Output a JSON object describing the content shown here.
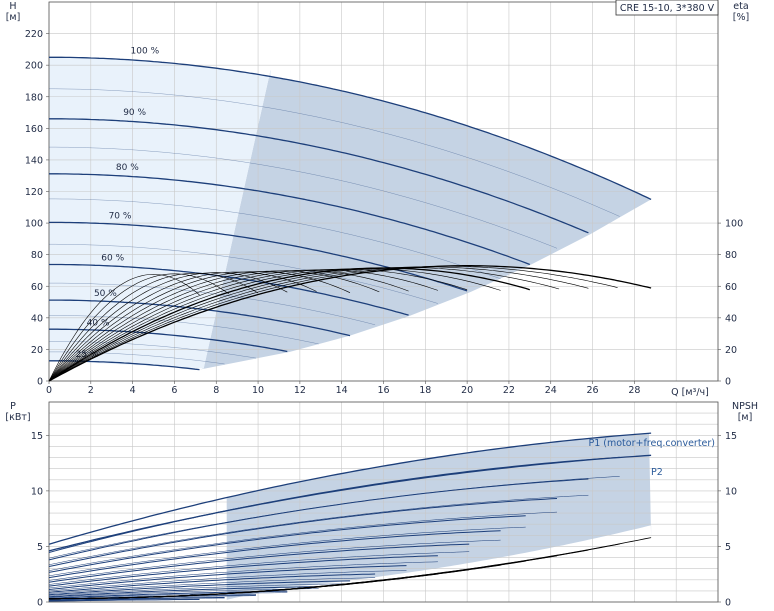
{
  "chart_data": [
    {
      "type": "line",
      "title": "CRE 15-10, 3*380 V",
      "xlabel": "Q [м³/ч]",
      "ylabel_left_name": "H",
      "ylabel_left_unit": "[м]",
      "ylabel_right_name": "eta",
      "ylabel_right_unit": "[%]",
      "xlim": [
        0,
        32
      ],
      "ylim_left": [
        0,
        240
      ],
      "ylim_right": [
        0,
        240
      ],
      "x_ticks": [
        "0",
        "2",
        "4",
        "6",
        "8",
        "10",
        "12",
        "14",
        "16",
        "18",
        "20",
        "22",
        "24",
        "26",
        "28"
      ],
      "y_ticks_left": [
        "0",
        "20",
        "40",
        "60",
        "80",
        "100",
        "120",
        "140",
        "160",
        "180",
        "200",
        "220"
      ],
      "y_ticks_right": [
        "0",
        "20",
        "40",
        "60",
        "80",
        "100"
      ],
      "grid": true,
      "speed_labels": [
        "100 %",
        "90 %",
        "80 %",
        "70 %",
        "60 %",
        "50 %",
        "40 %",
        "25 %"
      ],
      "speed_fractions": [
        1.0,
        0.9,
        0.8,
        0.7,
        0.6,
        0.5,
        0.4,
        0.25
      ],
      "head_curve_100": {
        "shutoff_head": 205,
        "qmax": 28.8,
        "h_at_qmax": 115
      },
      "efficiency_curve_100": {
        "qmax": 28.8,
        "eta_max": 73,
        "q_at_eta_max": 20
      }
    },
    {
      "type": "line",
      "xlabel": "",
      "ylabel_left_name": "P",
      "ylabel_left_unit": "[кВт]",
      "ylabel_right_name": "NPSH",
      "ylabel_right_unit": "[м]",
      "xlim": [
        0,
        32
      ],
      "ylim_left": [
        0,
        18
      ],
      "ylim_right": [
        0,
        18
      ],
      "y_ticks_left": [
        "0",
        "5",
        "10",
        "15"
      ],
      "y_ticks_right": [
        "0",
        "5",
        "10",
        "15"
      ],
      "grid": true,
      "series_labels": [
        "P1 (motor+freq.converter)",
        "P2"
      ],
      "p1_curve_100": {
        "p0": 5.2,
        "pmax": 15.2,
        "qmax": 28.8
      },
      "p2_curve_100": {
        "p0": 4.6,
        "pmax": 13.2,
        "qmax": 28.8
      },
      "npsh_curve": {
        "n0": 0.3,
        "nmax": 5.8,
        "qmax": 28.8
      }
    }
  ],
  "colors": {
    "curve": "#1d3f7a",
    "efficiency": "#000000",
    "region_dark": "#c5d3e4",
    "region_light": "#e9f2fb",
    "grid": "#c8c8c8",
    "label_blue": "#2a5a9a"
  }
}
